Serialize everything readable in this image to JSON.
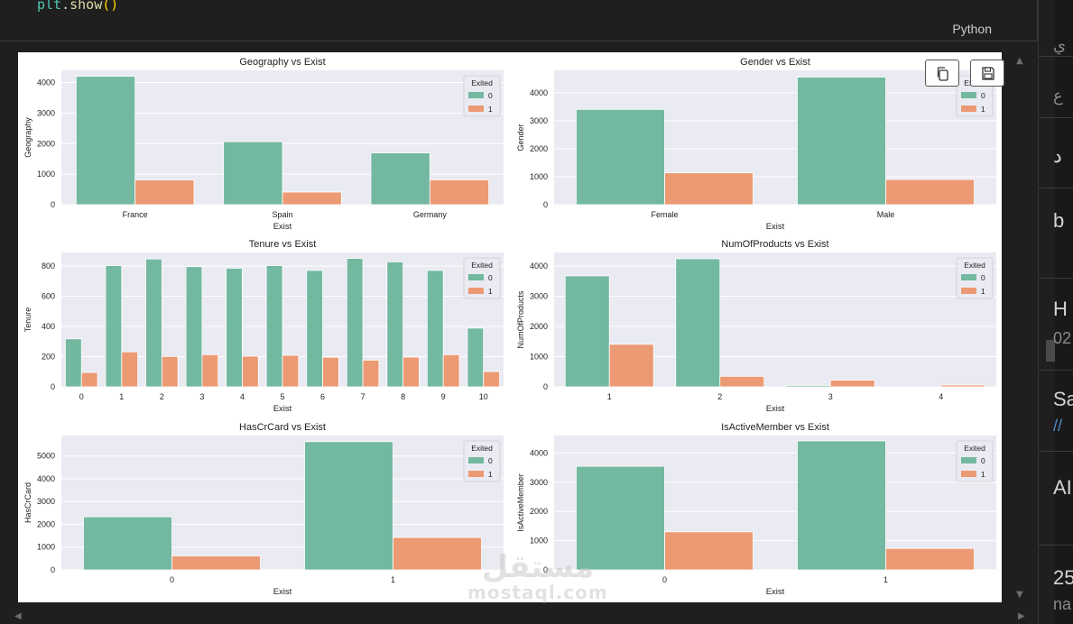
{
  "code": {
    "object": "plt",
    "method": "show",
    "parens": "()"
  },
  "cell": {
    "language": "Python"
  },
  "output_toolbar": {
    "copy_icon": "copy-icon",
    "save_icon": "save-icon"
  },
  "side_panel": {
    "fragments": [
      "ي",
      "ع",
      "د",
      "b",
      "H",
      "02",
      "Sa",
      "AI",
      "25",
      "na"
    ]
  },
  "watermark": {
    "arabic": "مستقل",
    "latin": "mostaql.com"
  },
  "colors": {
    "exited_0": "#73b8a0",
    "exited_1": "#ec9a74",
    "plot_bg": "#eaeaf2",
    "grid": "#ffffff"
  },
  "chart_data": [
    {
      "type": "bar",
      "title": "Geography vs Exist",
      "xlabel": "Exist",
      "ylabel": "Geography",
      "categories": [
        "France",
        "Spain",
        "Germany"
      ],
      "ylim": [
        0,
        4400
      ],
      "yticks": [
        0,
        1000,
        2000,
        3000,
        4000
      ],
      "legend": {
        "title": "Exited",
        "position": "top-right"
      },
      "series": [
        {
          "name": "0",
          "values": [
            4204,
            2064,
            1695
          ]
        },
        {
          "name": "1",
          "values": [
            810,
            413,
            814
          ]
        }
      ]
    },
    {
      "type": "bar",
      "title": "Gender vs Exist",
      "xlabel": "Exist",
      "ylabel": "Gender",
      "categories": [
        "Female",
        "Male"
      ],
      "ylim": [
        0,
        4800
      ],
      "yticks": [
        0,
        1000,
        2000,
        3000,
        4000
      ],
      "legend": {
        "title": "Exited",
        "position": "top-right"
      },
      "series": [
        {
          "name": "0",
          "values": [
            3404,
            4559
          ]
        },
        {
          "name": "1",
          "values": [
            1139,
            898
          ]
        }
      ]
    },
    {
      "type": "bar",
      "title": "Tenure vs Exist",
      "xlabel": "Exist",
      "ylabel": "Tenure",
      "categories": [
        "0",
        "1",
        "2",
        "3",
        "4",
        "5",
        "6",
        "7",
        "8",
        "9",
        "10"
      ],
      "ylim": [
        0,
        890
      ],
      "yticks": [
        0,
        200,
        400,
        600,
        800
      ],
      "legend": {
        "title": "Exited",
        "position": "top-right"
      },
      "series": [
        {
          "name": "0",
          "values": [
            318,
            803,
            847,
            796,
            786,
            803,
            771,
            851,
            828,
            771,
            389
          ]
        },
        {
          "name": "1",
          "values": [
            95,
            232,
            201,
            213,
            203,
            209,
            196,
            177,
            197,
            213,
            101
          ]
        }
      ]
    },
    {
      "type": "bar",
      "title": "NumOfProducts vs Exist",
      "xlabel": "Exist",
      "ylabel": "NumOfProducts",
      "categories": [
        "1",
        "2",
        "3",
        "4"
      ],
      "ylim": [
        0,
        4450
      ],
      "yticks": [
        0,
        1000,
        2000,
        3000,
        4000
      ],
      "legend": {
        "title": "Exited",
        "position": "top-right"
      },
      "series": [
        {
          "name": "0",
          "values": [
            3675,
            4242,
            46,
            0
          ]
        },
        {
          "name": "1",
          "values": [
            1409,
            348,
            220,
            60
          ]
        }
      ]
    },
    {
      "type": "bar",
      "title": "HasCrCard vs Exist",
      "xlabel": "Exist",
      "ylabel": "HasCrCard",
      "categories": [
        "0",
        "1"
      ],
      "ylim": [
        0,
        5900
      ],
      "yticks": [
        0,
        1000,
        2000,
        3000,
        4000,
        5000
      ],
      "legend": {
        "title": "Exited",
        "position": "top-right"
      },
      "series": [
        {
          "name": "0",
          "values": [
            2332,
            5631
          ]
        },
        {
          "name": "1",
          "values": [
            613,
            1424
          ]
        }
      ]
    },
    {
      "type": "bar",
      "title": "IsActiveMember vs Exist",
      "xlabel": "Exist",
      "ylabel": "IsActiveMember",
      "categories": [
        "0",
        "1"
      ],
      "ylim": [
        0,
        4600
      ],
      "yticks": [
        0,
        1000,
        2000,
        3000,
        4000
      ],
      "legend": {
        "title": "Exited",
        "position": "top-right"
      },
      "series": [
        {
          "name": "0",
          "values": [
            3547,
            4416
          ]
        },
        {
          "name": "1",
          "values": [
            1302,
            735
          ]
        }
      ]
    }
  ]
}
